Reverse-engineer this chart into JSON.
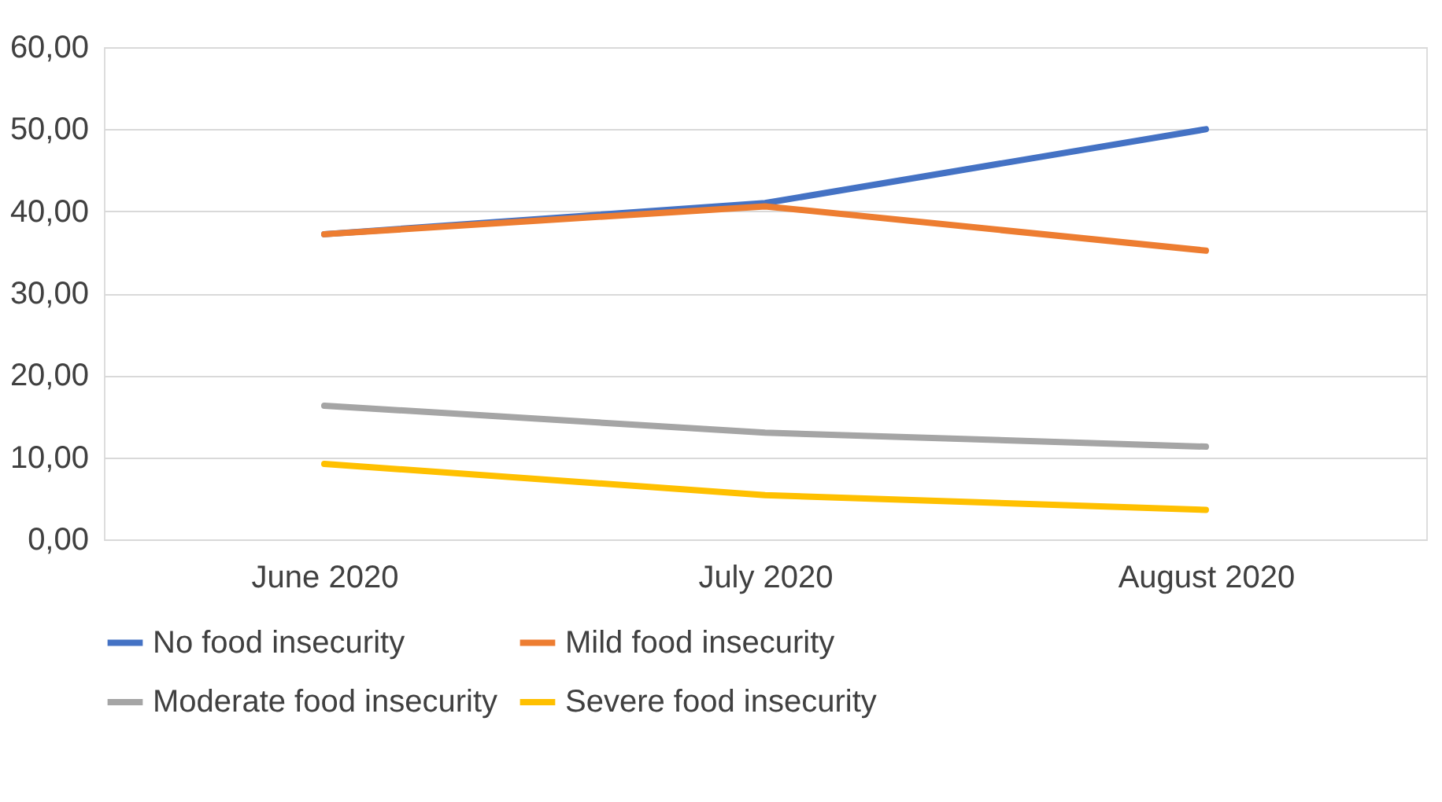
{
  "chart_data": {
    "type": "line",
    "categories": [
      "June 2020",
      "July 2020",
      "August 2020"
    ],
    "series": [
      {
        "name": "No food insecurity",
        "color": "#4472c4",
        "values": [
          37.2,
          41.0,
          50.0
        ]
      },
      {
        "name": "Mild food insecurity",
        "color": "#ed7d31",
        "values": [
          37.2,
          40.6,
          35.2
        ]
      },
      {
        "name": "Moderate food insecurity",
        "color": "#a5a5a5",
        "values": [
          16.3,
          13.0,
          11.3
        ]
      },
      {
        "name": "Severe food insecurity",
        "color": "#ffc000",
        "values": [
          9.2,
          5.4,
          3.6
        ]
      }
    ],
    "ylim": [
      0,
      60
    ],
    "yticks": [
      {
        "value": 0,
        "label": "0,00"
      },
      {
        "value": 10,
        "label": "10,00"
      },
      {
        "value": 20,
        "label": "20,00"
      },
      {
        "value": 30,
        "label": "30,00"
      },
      {
        "value": 40,
        "label": "40,00"
      },
      {
        "value": 50,
        "label": "50,00"
      },
      {
        "value": 60,
        "label": "60,00"
      }
    ],
    "grid": "y",
    "legend": "bottom",
    "marker": "none",
    "line_style": "solid"
  }
}
